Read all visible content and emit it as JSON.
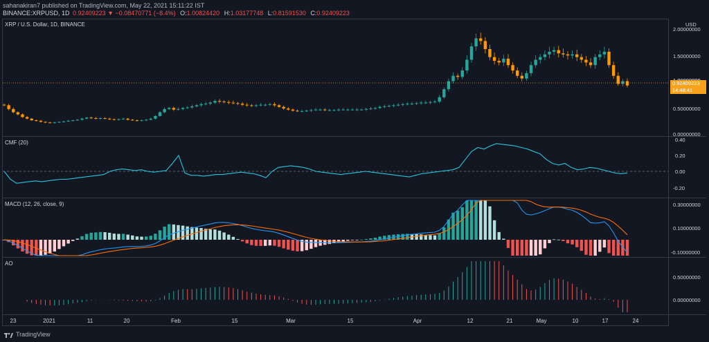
{
  "header": {
    "published_line": "sahanakiran7 published on TradingView.com, May 22, 2021 15:11:22 IST",
    "symbol": "BINANCE:XRPUSD, 1D",
    "change": "0.92409223 ▼ −0.08470771 (−8.4%)",
    "ohlc": [
      {
        "k": "O:",
        "v": "1.00824420"
      },
      {
        "k": "H:",
        "v": "1.03177748"
      },
      {
        "k": "L:",
        "v": "0.81591530"
      },
      {
        "k": "C:",
        "v": "0.92409223"
      }
    ]
  },
  "price_pane": {
    "title": "XRP / U.S. Dollar, 1D, BINANCE",
    "currency": "USD",
    "axis_labels": [
      "2.00000000",
      "1.50000000",
      "1.00000000",
      "0.50000000",
      "0.00000000"
    ],
    "last_price": "0.92409223",
    "countdown": "14:48:41"
  },
  "cmf_pane": {
    "title": "CMF (20)",
    "axis_labels": [
      "0.40",
      "0.20",
      "0.00",
      "-0.20"
    ]
  },
  "macd_pane": {
    "title": "MACD (12, 26, close, 9)",
    "axis_labels": [
      "0.30000000",
      "0.10000000",
      "-0.10000000"
    ]
  },
  "ao_pane": {
    "title": "AO",
    "axis_labels": [
      "0.50000000",
      "0.00000000"
    ]
  },
  "x_axis": [
    "23",
    "2021",
    "11",
    "20",
    "Feb",
    "15",
    "Mar",
    "15",
    "Apr",
    "12",
    "21",
    "May",
    "10",
    "17",
    "24"
  ],
  "footer": {
    "brand": "TradingView"
  },
  "colors": {
    "up": "#26a69a",
    "down": "#ff9800",
    "cmf": "#26c6da",
    "macd": "#2196f3",
    "signal": "#ff6d00",
    "hist_up": "#26a69a",
    "hist_down": "#ef5350",
    "ao_up": "#26a69a",
    "ao_down": "#ef5350"
  },
  "chart_data": {
    "type": "candlestick",
    "closes": [
      0.55,
      0.48,
      0.42,
      0.38,
      0.33,
      0.3,
      0.27,
      0.26,
      0.24,
      0.23,
      0.22,
      0.23,
      0.24,
      0.25,
      0.26,
      0.27,
      0.28,
      0.3,
      0.32,
      0.31,
      0.3,
      0.31,
      0.3,
      0.29,
      0.28,
      0.29,
      0.3,
      0.28,
      0.27,
      0.26,
      0.27,
      0.28,
      0.3,
      0.35,
      0.42,
      0.48,
      0.5,
      0.47,
      0.48,
      0.5,
      0.51,
      0.53,
      0.55,
      0.57,
      0.58,
      0.6,
      0.63,
      0.62,
      0.61,
      0.6,
      0.59,
      0.58,
      0.56,
      0.55,
      0.54,
      0.55,
      0.56,
      0.56,
      0.57,
      0.55,
      0.52,
      0.49,
      0.47,
      0.45,
      0.44,
      0.44,
      0.45,
      0.46,
      0.47,
      0.47,
      0.46,
      0.46,
      0.46,
      0.47,
      0.47,
      0.47,
      0.47,
      0.47,
      0.47,
      0.48,
      0.49,
      0.5,
      0.52,
      0.53,
      0.54,
      0.55,
      0.56,
      0.57,
      0.58,
      0.58,
      0.59,
      0.6,
      0.6,
      0.61,
      0.62,
      0.7,
      0.85,
      1.0,
      1.1,
      1.08,
      1.2,
      1.4,
      1.65,
      1.8,
      1.75,
      1.6,
      1.45,
      1.38,
      1.35,
      1.42,
      1.3,
      1.2,
      1.1,
      1.05,
      1.15,
      1.3,
      1.4,
      1.45,
      1.5,
      1.55,
      1.58,
      1.52,
      1.5,
      1.48,
      1.5,
      1.45,
      1.4,
      1.35,
      1.3,
      1.45,
      1.5,
      1.55,
      1.3,
      1.1,
      0.95,
      1.0,
      0.92
    ],
    "cmf": [
      0.0,
      -0.1,
      -0.15,
      -0.14,
      -0.13,
      -0.12,
      -0.13,
      -0.12,
      -0.11,
      -0.1,
      -0.1,
      -0.09,
      -0.08,
      -0.07,
      -0.06,
      -0.05,
      -0.04,
      0.0,
      0.02,
      0.03,
      0.02,
      0.01,
      0.02,
      0.0,
      -0.01,
      0.0,
      0.01,
      0.1,
      0.2,
      -0.02,
      -0.05,
      -0.05,
      -0.06,
      -0.05,
      -0.04,
      -0.04,
      -0.03,
      -0.02,
      -0.01,
      -0.02,
      -0.03,
      -0.05,
      -0.08,
      0.0,
      0.05,
      0.06,
      0.07,
      0.06,
      0.05,
      0.03,
      0.0,
      -0.01,
      -0.02,
      -0.03,
      -0.04,
      -0.03,
      -0.02,
      -0.01,
      0.0,
      -0.01,
      -0.02,
      -0.03,
      -0.04,
      -0.05,
      -0.06,
      -0.07,
      -0.05,
      -0.03,
      -0.02,
      -0.01,
      0.0,
      0.01,
      0.02,
      0.05,
      0.15,
      0.25,
      0.3,
      0.28,
      0.32,
      0.35,
      0.34,
      0.33,
      0.32,
      0.3,
      0.28,
      0.25,
      0.22,
      0.15,
      0.1,
      0.08,
      0.1,
      0.05,
      0.02,
      0.03,
      0.05,
      0.04,
      0.02,
      0.0,
      -0.02,
      -0.03,
      -0.02
    ]
  }
}
